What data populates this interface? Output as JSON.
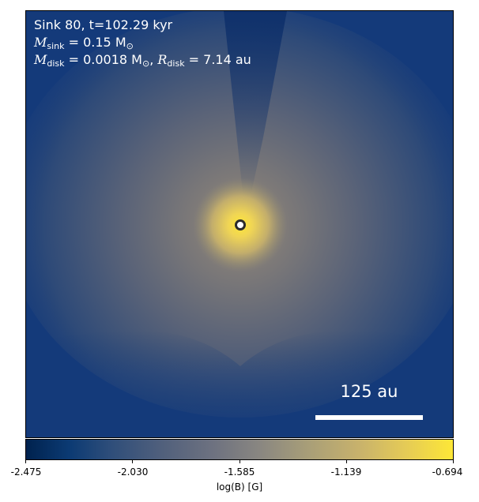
{
  "annotation": {
    "line1": "Sink 80, t=102.29 kyr",
    "sink_mass_label": "M",
    "sink_mass_sub": "sink",
    "sink_mass_value": " = 0.15 M",
    "sink_mass_unit_sub": "⊙",
    "disk_mass_label": "M",
    "disk_mass_sub": "disk",
    "disk_mass_value": " = 0.0018 M",
    "disk_mass_unit_sub": "⊙",
    "disk_radius_label": "R",
    "disk_radius_sub": "disk",
    "disk_radius_value": " = 7.14 au"
  },
  "scale_bar": {
    "label": "125 au"
  },
  "colorbar": {
    "title": "log(B) [G]",
    "colormap": "cividis",
    "ticks": [
      "-2.475",
      "-2.030",
      "-1.585",
      "-1.139",
      "-0.694"
    ]
  },
  "colors": {
    "background_field": "#143a7a",
    "core": "#fde737",
    "sink_marker_ring": "#2b2b2b",
    "sink_marker_fill": "#ffffff"
  }
}
